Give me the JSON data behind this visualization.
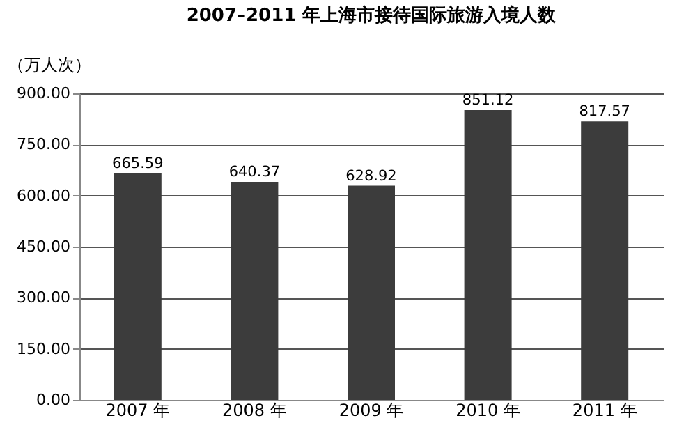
{
  "chart_data": {
    "type": "bar",
    "title": "2007–2011 年上海市接待国际旅游入境人数",
    "ylabel": "（万人次）",
    "categories": [
      "2007 年",
      "2008 年",
      "2009 年",
      "2010 年",
      "2011 年"
    ],
    "values": [
      665.59,
      640.37,
      628.92,
      851.12,
      817.57
    ],
    "color": "#3c3c3c",
    "ylim": [
      0,
      900
    ],
    "yticks": [
      {
        "value": 0,
        "label": "0.00"
      },
      {
        "value": 150,
        "label": "150.00"
      },
      {
        "value": 300,
        "label": "300.00"
      },
      {
        "value": 450,
        "label": "450.00"
      },
      {
        "value": 600,
        "label": "600.00"
      },
      {
        "value": 750,
        "label": "750.00"
      },
      {
        "value": 900,
        "label": "900.00"
      }
    ],
    "grid": "y",
    "data_labels": true
  }
}
